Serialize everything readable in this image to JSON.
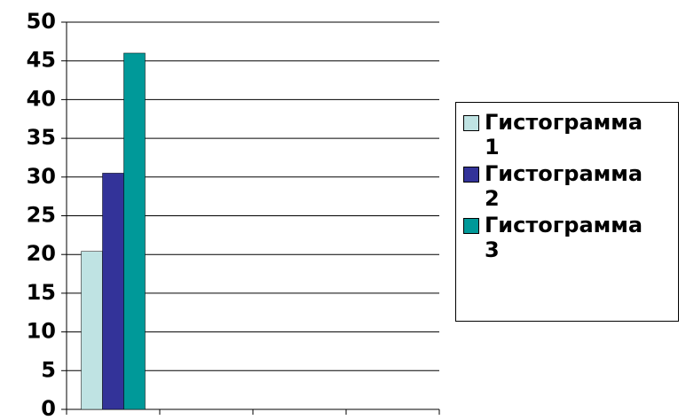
{
  "chart_data": {
    "type": "bar",
    "categories": [
      null,
      null,
      null,
      null
    ],
    "series": [
      {
        "name": "Гистограмма 1",
        "color": "#bfe3e3",
        "values": [
          20.4,
          null,
          null,
          null
        ]
      },
      {
        "name": "Гистограмма 2",
        "color": "#333399",
        "values": [
          30.5,
          null,
          null,
          null
        ]
      },
      {
        "name": "Гистограмма 3",
        "color": "#009999",
        "values": [
          46,
          null,
          null,
          null
        ]
      }
    ],
    "ylim": [
      0,
      50
    ],
    "yticks": [
      0,
      5,
      10,
      15,
      20,
      25,
      30,
      35,
      40,
      45,
      50
    ],
    "grid": true,
    "legend": "right"
  }
}
